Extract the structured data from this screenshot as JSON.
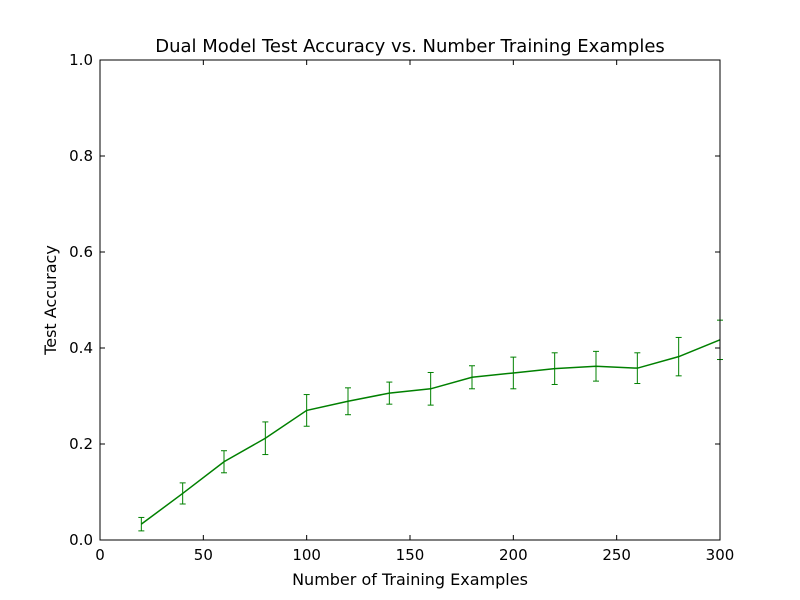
{
  "chart_data": {
    "type": "line",
    "title": "Dual Model Test Accuracy vs. Number Training Examples",
    "xlabel": "Number of Training Examples",
    "ylabel": "Test Accuracy",
    "xlim": [
      0,
      300
    ],
    "ylim": [
      0.0,
      1.0
    ],
    "xticks": [
      0,
      50,
      100,
      150,
      200,
      250,
      300
    ],
    "xtick_labels": [
      "0",
      "50",
      "100",
      "150",
      "200",
      "250",
      "300"
    ],
    "yticks": [
      0.0,
      0.2,
      0.4,
      0.6,
      0.8,
      1.0
    ],
    "ytick_labels": [
      "0.0",
      "0.2",
      "0.4",
      "0.6",
      "0.8",
      "1.0"
    ],
    "grid": false,
    "series": [
      {
        "color": "#008000",
        "x": [
          20,
          40,
          60,
          80,
          100,
          120,
          140,
          160,
          180,
          200,
          220,
          240,
          260,
          280,
          300
        ],
        "y": [
          0.033,
          0.097,
          0.163,
          0.212,
          0.27,
          0.289,
          0.306,
          0.315,
          0.339,
          0.348,
          0.357,
          0.362,
          0.358,
          0.382,
          0.417
        ],
        "yerr": [
          0.014,
          0.022,
          0.023,
          0.034,
          0.033,
          0.028,
          0.023,
          0.034,
          0.024,
          0.033,
          0.033,
          0.031,
          0.032,
          0.04,
          0.041
        ]
      }
    ]
  }
}
